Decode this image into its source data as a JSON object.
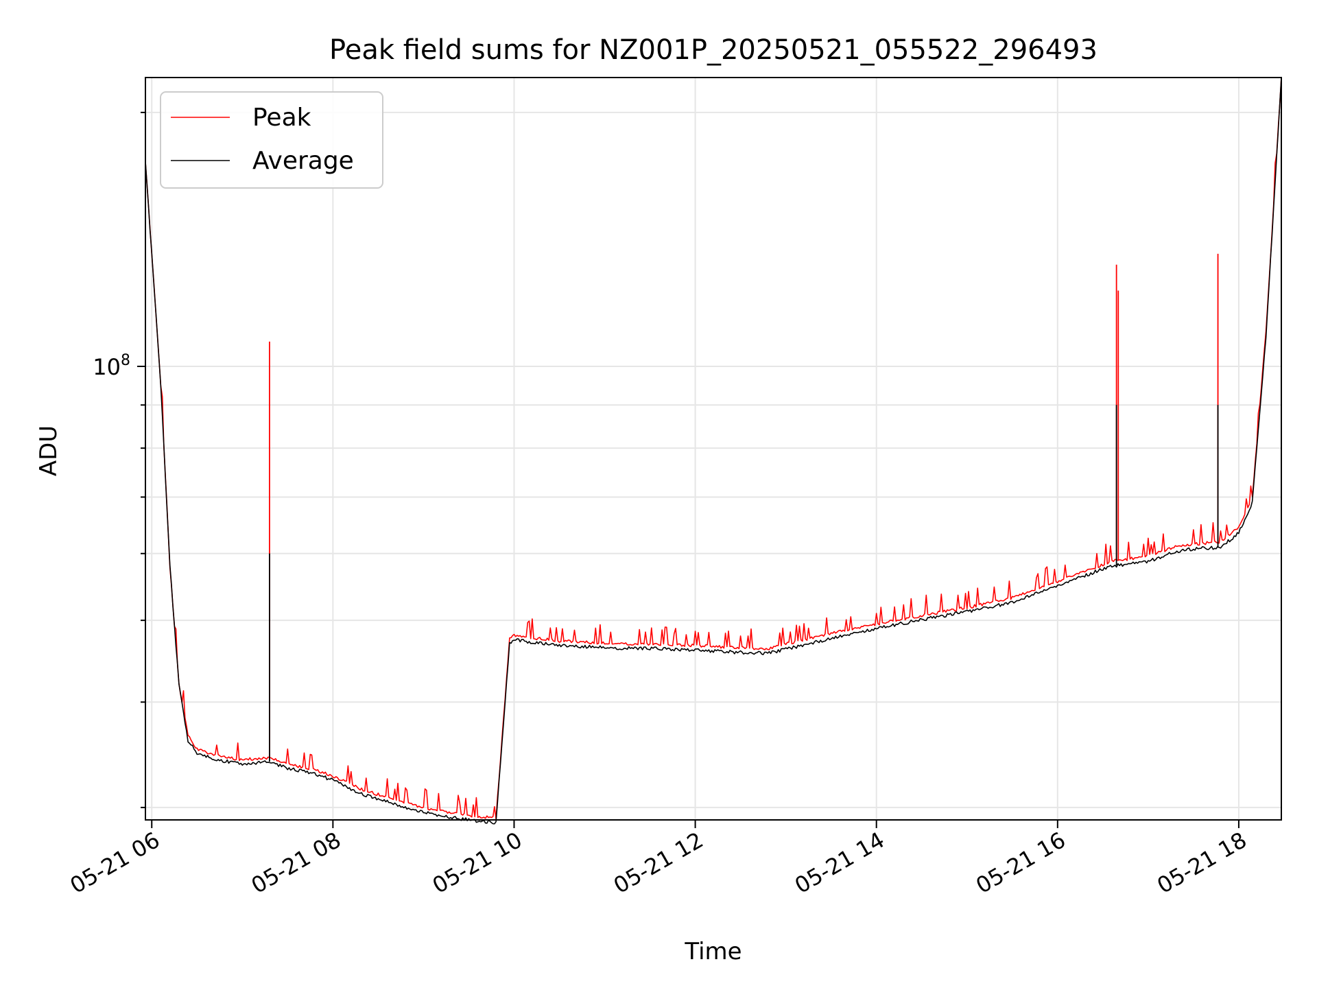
{
  "chart_data": {
    "type": "line",
    "title": "Peak field sums for NZ001P_20250521_055522_296493",
    "xlabel": "Time",
    "ylabel": "ADU",
    "x_ticks": [
      "05-21 06",
      "05-21 08",
      "05-21 10",
      "05-21 12",
      "05-21 14",
      "05-21 16",
      "05-21 18"
    ],
    "x_tick_hours": [
      6,
      8,
      10,
      12,
      14,
      16,
      18
    ],
    "y_ticks": [
      {
        "value": 100000000,
        "base": "10",
        "exp": "8"
      }
    ],
    "y_scale": "log",
    "xlim_hours": [
      5.93,
      18.47
    ],
    "ylim": [
      29000000,
      220000000
    ],
    "grid": true,
    "legend_position": "upper left",
    "series": [
      {
        "name": "Peak",
        "color": "#ff0000",
        "x_hours": [
          5.93,
          6.1,
          6.2,
          6.3,
          6.4,
          6.5,
          6.7,
          7.0,
          7.3,
          7.5,
          7.8,
          8.0,
          8.3,
          8.5,
          8.8,
          9.0,
          9.3,
          9.6,
          9.8,
          9.95,
          10.0,
          10.2,
          10.5,
          11.0,
          11.5,
          12.0,
          12.5,
          12.8,
          13.0,
          13.5,
          14.0,
          14.5,
          15.0,
          15.5,
          16.0,
          16.3,
          16.6,
          17.0,
          17.3,
          17.5,
          17.8,
          18.0,
          18.15,
          18.3,
          18.47
        ],
        "values": [
          175000000,
          95000000,
          58000000,
          42000000,
          36500000,
          35200000,
          34600000,
          34200000,
          34400000,
          33800000,
          33300000,
          32700000,
          31600000,
          31100000,
          30400000,
          30000000,
          29600000,
          29300000,
          29200000,
          47500000,
          48000000,
          47700000,
          47300000,
          47000000,
          46900000,
          46700000,
          46400000,
          46300000,
          46900000,
          48300000,
          49500000,
          50700000,
          51800000,
          53200000,
          55600000,
          57200000,
          58800000,
          59600000,
          61200000,
          61600000,
          62000000,
          64500000,
          70000000,
          110000000,
          220000000
        ],
        "spikes": [
          {
            "x_hour": 7.3,
            "value": 107000000
          },
          {
            "x_hour": 16.65,
            "value": 132000000
          },
          {
            "x_hour": 16.67,
            "value": 123000000
          },
          {
            "x_hour": 17.77,
            "value": 136000000
          }
        ]
      },
      {
        "name": "Average",
        "color": "#000000",
        "x_hours": [
          5.93,
          6.1,
          6.2,
          6.3,
          6.4,
          6.5,
          6.7,
          7.0,
          7.3,
          7.5,
          7.8,
          8.0,
          8.3,
          8.5,
          8.8,
          9.0,
          9.3,
          9.6,
          9.8,
          9.95,
          10.0,
          10.2,
          10.5,
          11.0,
          11.5,
          12.0,
          12.5,
          12.8,
          13.0,
          13.5,
          14.0,
          14.5,
          15.0,
          15.5,
          16.0,
          16.3,
          16.6,
          17.0,
          17.3,
          17.5,
          17.8,
          18.0,
          18.15,
          18.3,
          18.47
        ],
        "values": [
          175000000,
          95000000,
          58000000,
          42000000,
          36000000,
          34800000,
          34200000,
          33800000,
          34000000,
          33400000,
          32900000,
          32300000,
          31200000,
          30700000,
          30000000,
          29600000,
          29200000,
          28900000,
          28800000,
          47000000,
          47400000,
          47100000,
          46700000,
          46400000,
          46300000,
          46100000,
          45800000,
          45700000,
          46200000,
          47600000,
          48900000,
          50100000,
          51200000,
          52500000,
          54900000,
          56500000,
          58000000,
          58700000,
          60300000,
          60800000,
          61000000,
          63500000,
          69000000,
          108000000,
          220000000
        ],
        "spikes": [
          {
            "x_hour": 7.3,
            "value": 60000000
          },
          {
            "x_hour": 16.65,
            "value": 90000000
          },
          {
            "x_hour": 17.77,
            "value": 90000000
          }
        ]
      }
    ]
  }
}
